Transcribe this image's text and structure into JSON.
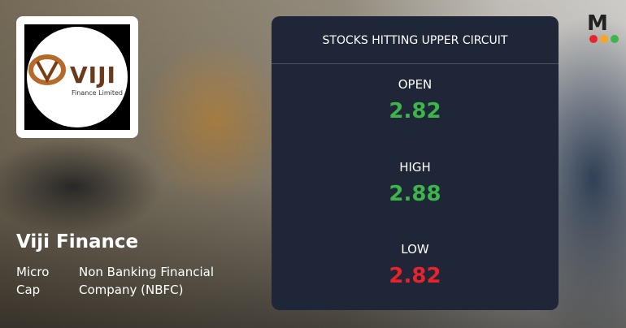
{
  "logo": {
    "word": "VIJI",
    "subtitle": "Finance Limited"
  },
  "company": {
    "name": "Viji Finance",
    "market_cap": "Micro Cap",
    "sector": "Non Banking Financial Company (NBFC)"
  },
  "card": {
    "title": "STOCKS HITTING UPPER CIRCUIT",
    "stats": [
      {
        "label": "OPEN",
        "value": "2.82"
      },
      {
        "label": "HIGH",
        "value": "2.88"
      },
      {
        "label": "LOW",
        "value": "2.82"
      }
    ]
  },
  "brand": "M"
}
